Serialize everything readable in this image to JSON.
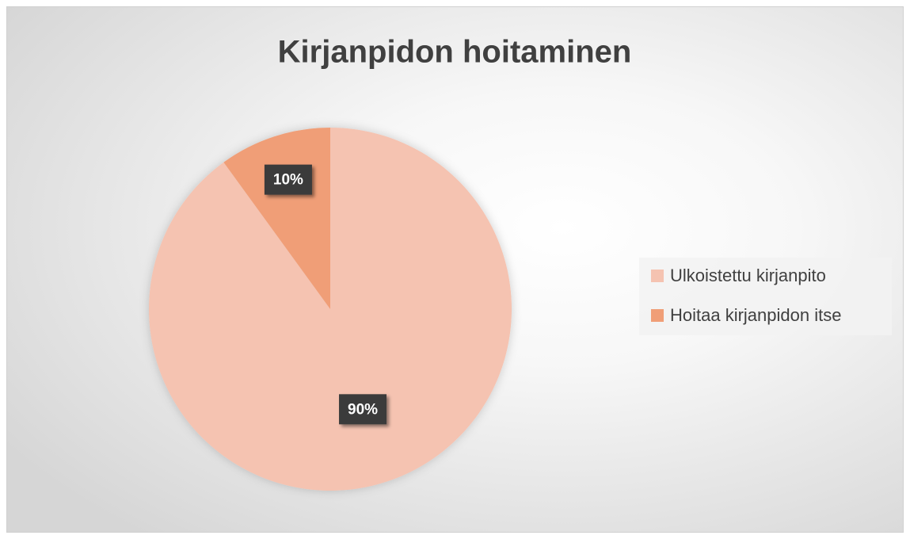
{
  "chart_data": {
    "type": "pie",
    "title": "Kirjanpidon hoitaminen",
    "categories": [
      "Ulkoistettu kirjanpito",
      "Hoitaa kirjanpidon itse"
    ],
    "values": [
      90,
      10
    ],
    "value_labels": [
      "90%",
      "10%"
    ],
    "colors": [
      "#f5c3b1",
      "#f09e77"
    ],
    "legend": "right"
  }
}
